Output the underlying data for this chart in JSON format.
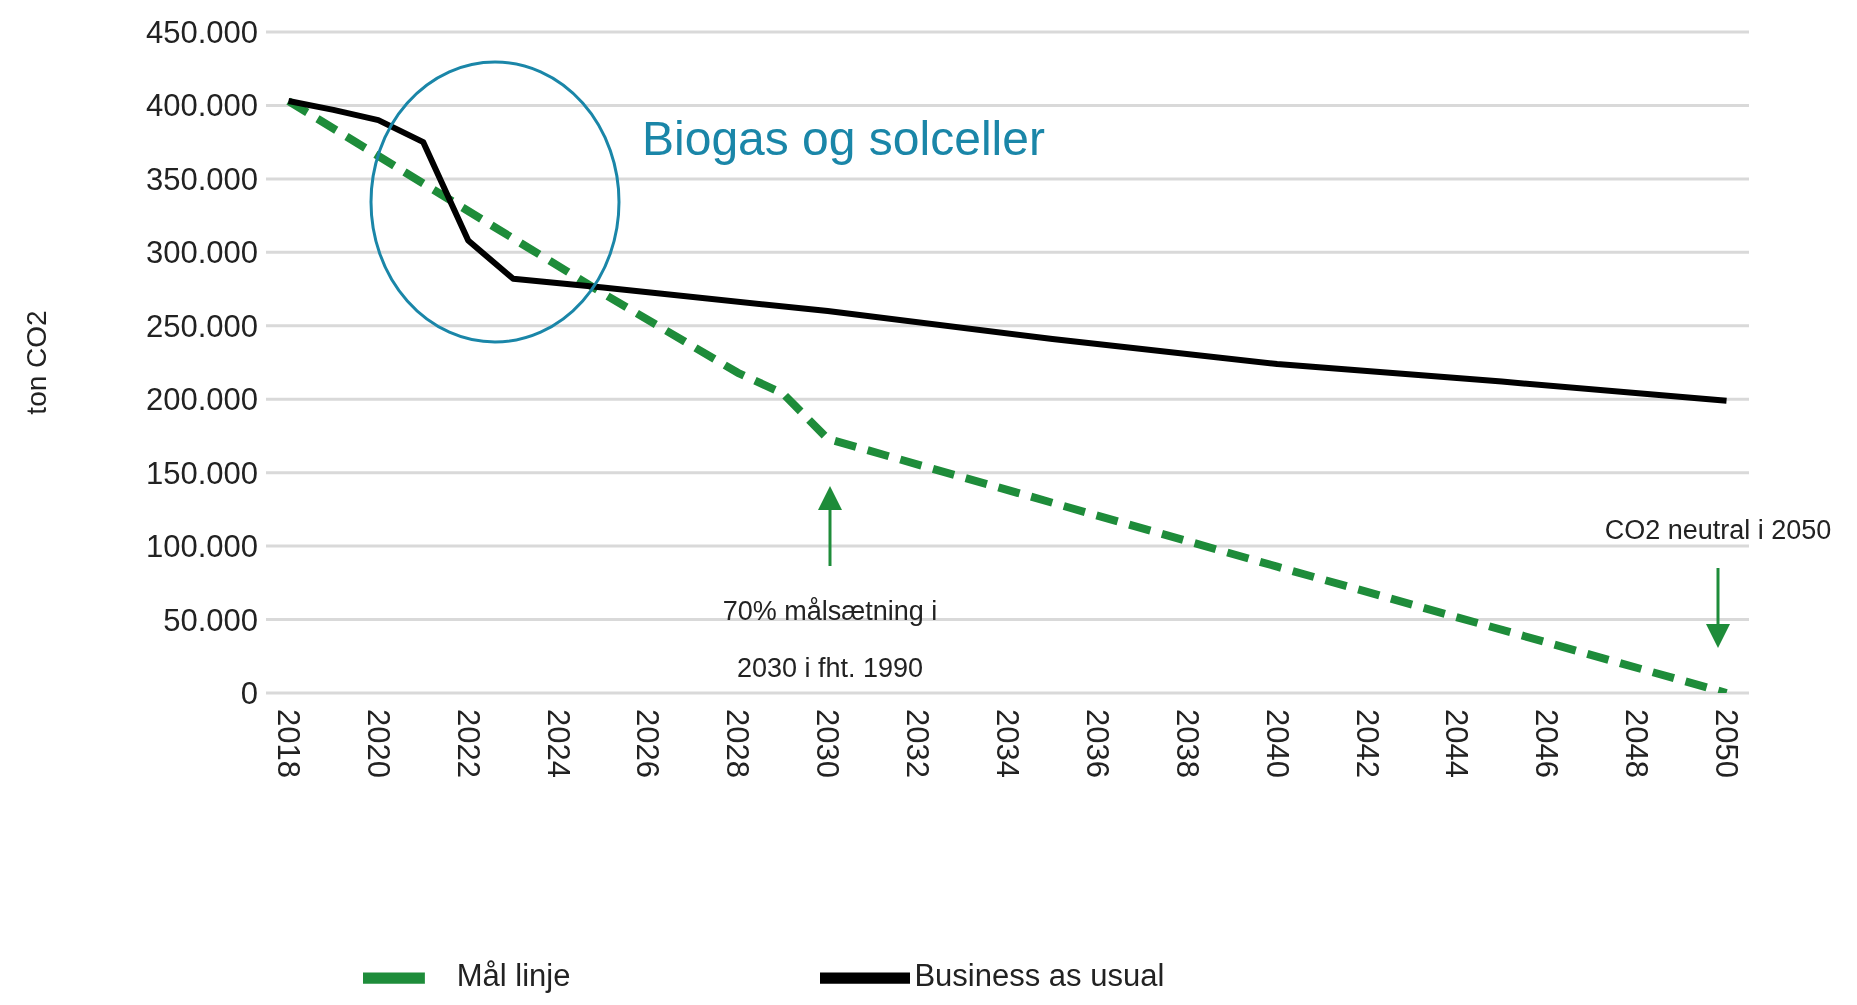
{
  "chart_data": {
    "type": "line",
    "ylabel": "ton CO2",
    "xlim": [
      2017.5,
      2050.5
    ],
    "xticks": [
      2018,
      2020,
      2022,
      2024,
      2026,
      2028,
      2030,
      2032,
      2034,
      2036,
      2038,
      2040,
      2042,
      2044,
      2046,
      2048,
      2050
    ],
    "ylim": [
      0,
      450000
    ],
    "yticks": [
      {
        "value": 0,
        "label": "0"
      },
      {
        "value": 50000,
        "label": "50.000"
      },
      {
        "value": 100000,
        "label": "100.000"
      },
      {
        "value": 150000,
        "label": "150.000"
      },
      {
        "value": 200000,
        "label": "200.000"
      },
      {
        "value": 250000,
        "label": "250.000"
      },
      {
        "value": 300000,
        "label": "300.000"
      },
      {
        "value": 350000,
        "label": "350.000"
      },
      {
        "value": 400000,
        "label": "400.000"
      },
      {
        "value": 450000,
        "label": "450.000"
      }
    ],
    "grid": "y",
    "legend": "bottom",
    "marker": "none",
    "series": [
      {
        "name": "Mål linje",
        "color": "#1e8c3a",
        "line_style": "dashed",
        "x": [
          2018,
          2025,
          2028,
          2029,
          2030,
          2040,
          2050
        ],
        "values": [
          403000,
          272000,
          218000,
          204000,
          173000,
          86000,
          0
        ]
      },
      {
        "name": "Business as usual",
        "color": "#000000",
        "line_style": "solid",
        "x": [
          2018,
          2019,
          2020,
          2021,
          2022,
          2023,
          2025,
          2030,
          2035,
          2040,
          2045,
          2050
        ],
        "values": [
          403000,
          397000,
          390000,
          375000,
          308000,
          282000,
          276000,
          260000,
          241000,
          224000,
          212000,
          199000
        ]
      }
    ],
    "annotations": [
      "Biogas og solceller",
      "70% målsætning i\n2030 i fht. 1990",
      "CO2 neutral i 2050"
    ]
  }
}
